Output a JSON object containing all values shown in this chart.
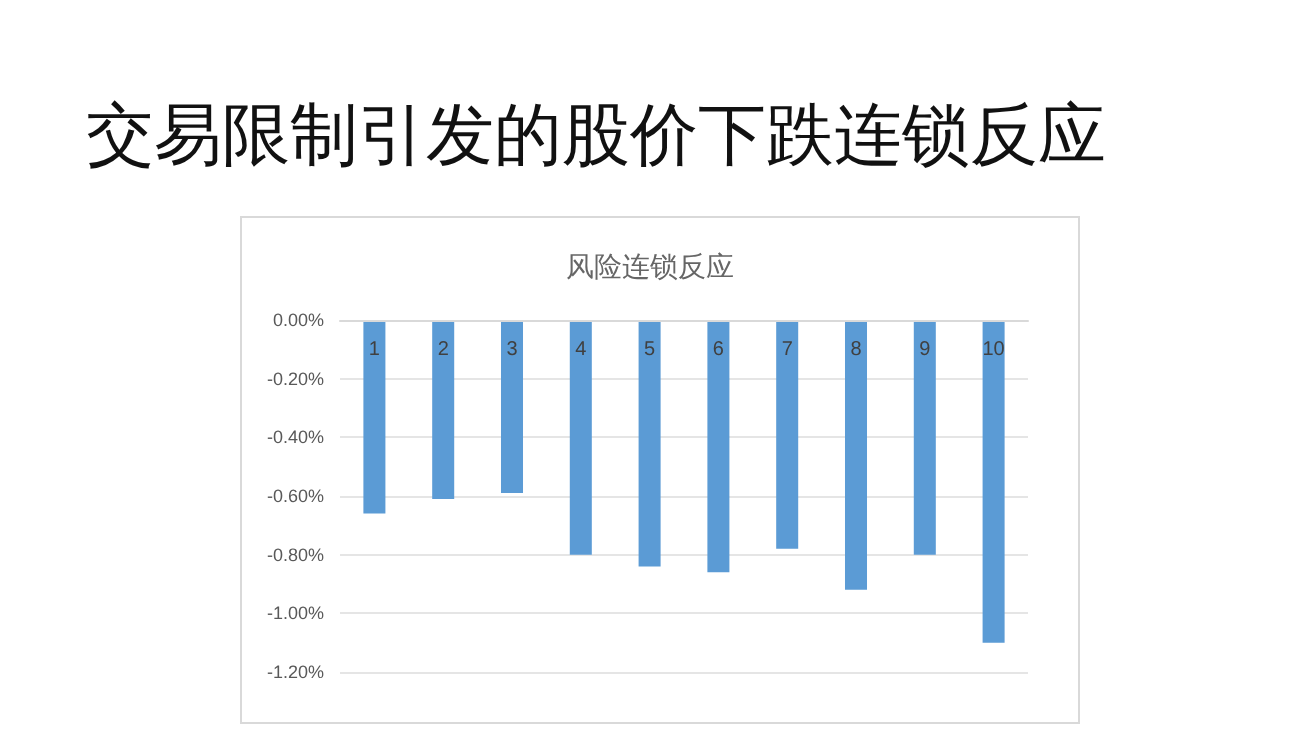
{
  "chart_data": {
    "type": "bar",
    "title": "交易限制引发的股价下跌连锁反应",
    "subtitle": "风险连锁反应",
    "categories": [
      "1",
      "2",
      "3",
      "4",
      "5",
      "6",
      "7",
      "8",
      "9",
      "10"
    ],
    "values": [
      -0.66,
      -0.61,
      -0.59,
      -0.8,
      -0.84,
      -0.86,
      -0.78,
      -0.92,
      -0.8,
      -1.1
    ],
    "color": "#5b9bd5",
    "ylim": [
      -1.2,
      0
    ],
    "yticks": [
      {
        "value": 0,
        "label": "0.00%"
      },
      {
        "value": -0.2,
        "label": "-0.20%"
      },
      {
        "value": -0.4,
        "label": "-0.40%"
      },
      {
        "value": -0.6,
        "label": "-0.60%"
      },
      {
        "value": -0.8,
        "label": "-0.80%"
      },
      {
        "value": -1,
        "label": "-1.00%"
      },
      {
        "value": -1.2,
        "label": "-1.20%"
      }
    ],
    "grid": "y"
  }
}
